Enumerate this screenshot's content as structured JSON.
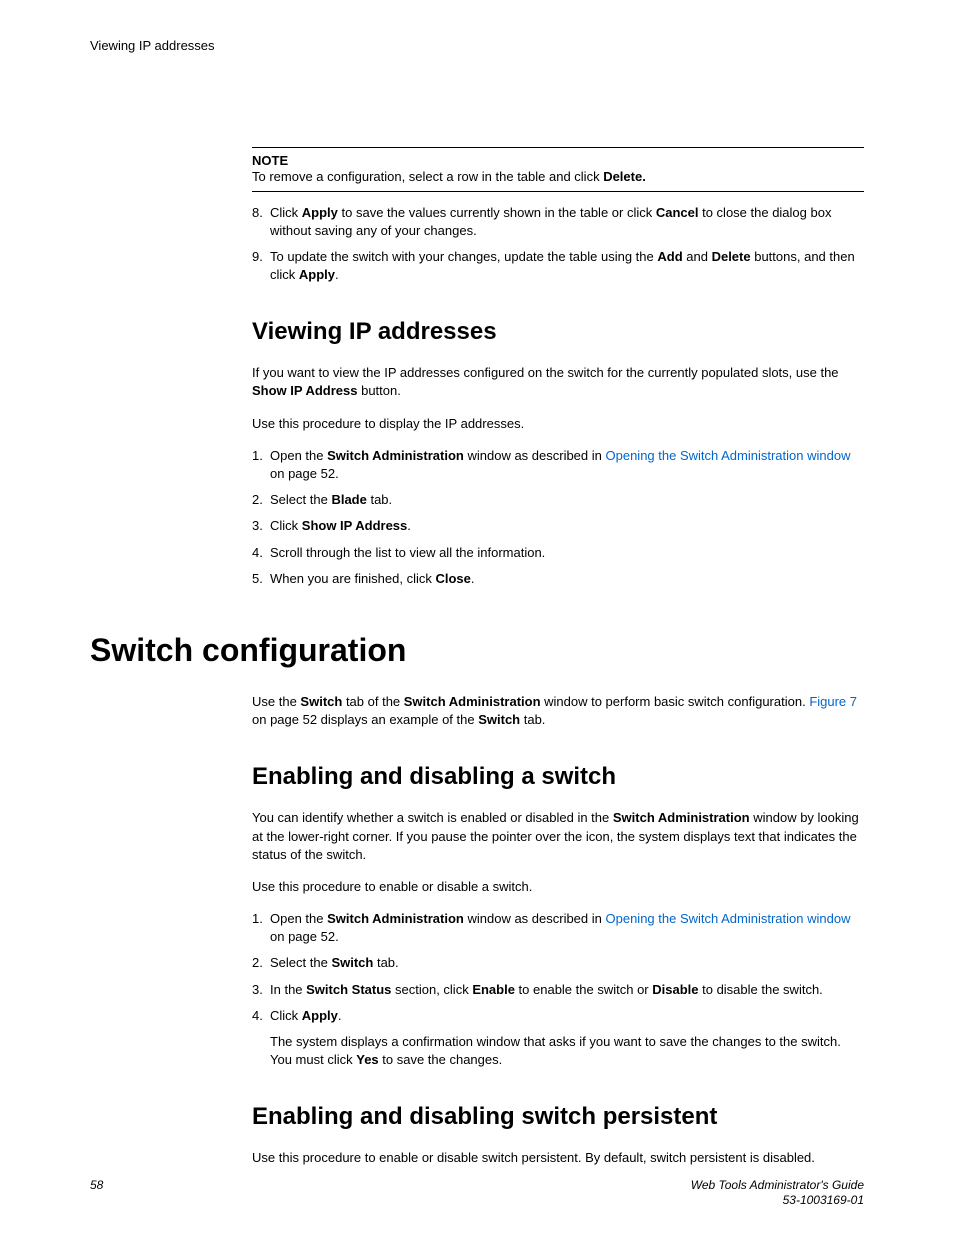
{
  "header": {
    "running": "Viewing IP addresses"
  },
  "note": {
    "label": "NOTE",
    "text_pre": "To remove a configuration, select a row in the table and click ",
    "text_bold": "Delete."
  },
  "list_a": {
    "i8_num": "8.",
    "i8_a": "Click ",
    "i8_b": "Apply",
    "i8_c": " to save the values currently shown in the table or click ",
    "i8_d": "Cancel",
    "i8_e": " to close the dialog box without saving any of your changes.",
    "i9_num": "9.",
    "i9_a": "To update the switch with your changes, update the table using the ",
    "i9_b": "Add",
    "i9_c": " and ",
    "i9_d": "Delete",
    "i9_e": " buttons, and then click ",
    "i9_f": "Apply",
    "i9_g": "."
  },
  "sec_view": {
    "title": "Viewing IP addresses",
    "p1_a": "If you want to view the IP addresses configured on the switch for the currently populated slots, use the ",
    "p1_b": "Show IP Address",
    "p1_c": " button.",
    "p2": "Use this procedure to display the IP addresses.",
    "l1_num": "1.",
    "l1_a": "Open the ",
    "l1_b": "Switch Administration",
    "l1_c": " window as described in ",
    "l1_link": "Opening the Switch Administration window",
    "l1_d": " on page 52.",
    "l2_num": "2.",
    "l2_a": "Select the ",
    "l2_b": "Blade",
    "l2_c": " tab.",
    "l3_num": "3.",
    "l3_a": "Click ",
    "l3_b": "Show IP Address",
    "l3_c": ".",
    "l4_num": "4.",
    "l4": "Scroll through the list to view all the information.",
    "l5_num": "5.",
    "l5_a": "When you are finished, click ",
    "l5_b": "Close",
    "l5_c": "."
  },
  "sec_config": {
    "title": "Switch configuration",
    "p1_a": "Use the ",
    "p1_b": "Switch",
    "p1_c": " tab of the ",
    "p1_d": "Switch Administration",
    "p1_e": " window to perform basic switch configuration. ",
    "p1_link": "Figure 7",
    "p1_f": " on page 52 displays an example of the ",
    "p1_g": "Switch",
    "p1_h": " tab."
  },
  "sec_enable": {
    "title": "Enabling and disabling a switch",
    "p1_a": "You can identify whether a switch is enabled or disabled in the ",
    "p1_b": "Switch Administration",
    "p1_c": " window by looking at the lower-right corner. If you pause the pointer over the icon, the system displays text that indicates the status of the switch.",
    "p2": "Use this procedure to enable or disable a switch.",
    "l1_num": "1.",
    "l1_a": "Open the ",
    "l1_b": "Switch Administration",
    "l1_c": " window as described in ",
    "l1_link": "Opening the Switch Administration window",
    "l1_d": " on page 52.",
    "l2_num": "2.",
    "l2_a": "Select the ",
    "l2_b": "Switch",
    "l2_c": " tab.",
    "l3_num": "3.",
    "l3_a": "In the ",
    "l3_b": "Switch Status",
    "l3_c": " section, click ",
    "l3_d": "Enable",
    "l3_e": " to enable the switch or ",
    "l3_f": "Disable",
    "l3_g": " to disable the switch.",
    "l4_num": "4.",
    "l4_a": "Click ",
    "l4_b": "Apply",
    "l4_c": ".",
    "l4_sub_a": "The system displays a confirmation window that asks if you want to save the changes to the switch. You must click ",
    "l4_sub_b": "Yes",
    "l4_sub_c": " to save the changes."
  },
  "sec_persist": {
    "title": "Enabling and disabling switch persistent",
    "p1": "Use this procedure to enable or disable switch persistent. By default, switch persistent is disabled."
  },
  "footer": {
    "pageno": "58",
    "guide": "Web Tools Administrator's Guide",
    "docnum": "53-1003169-01"
  }
}
